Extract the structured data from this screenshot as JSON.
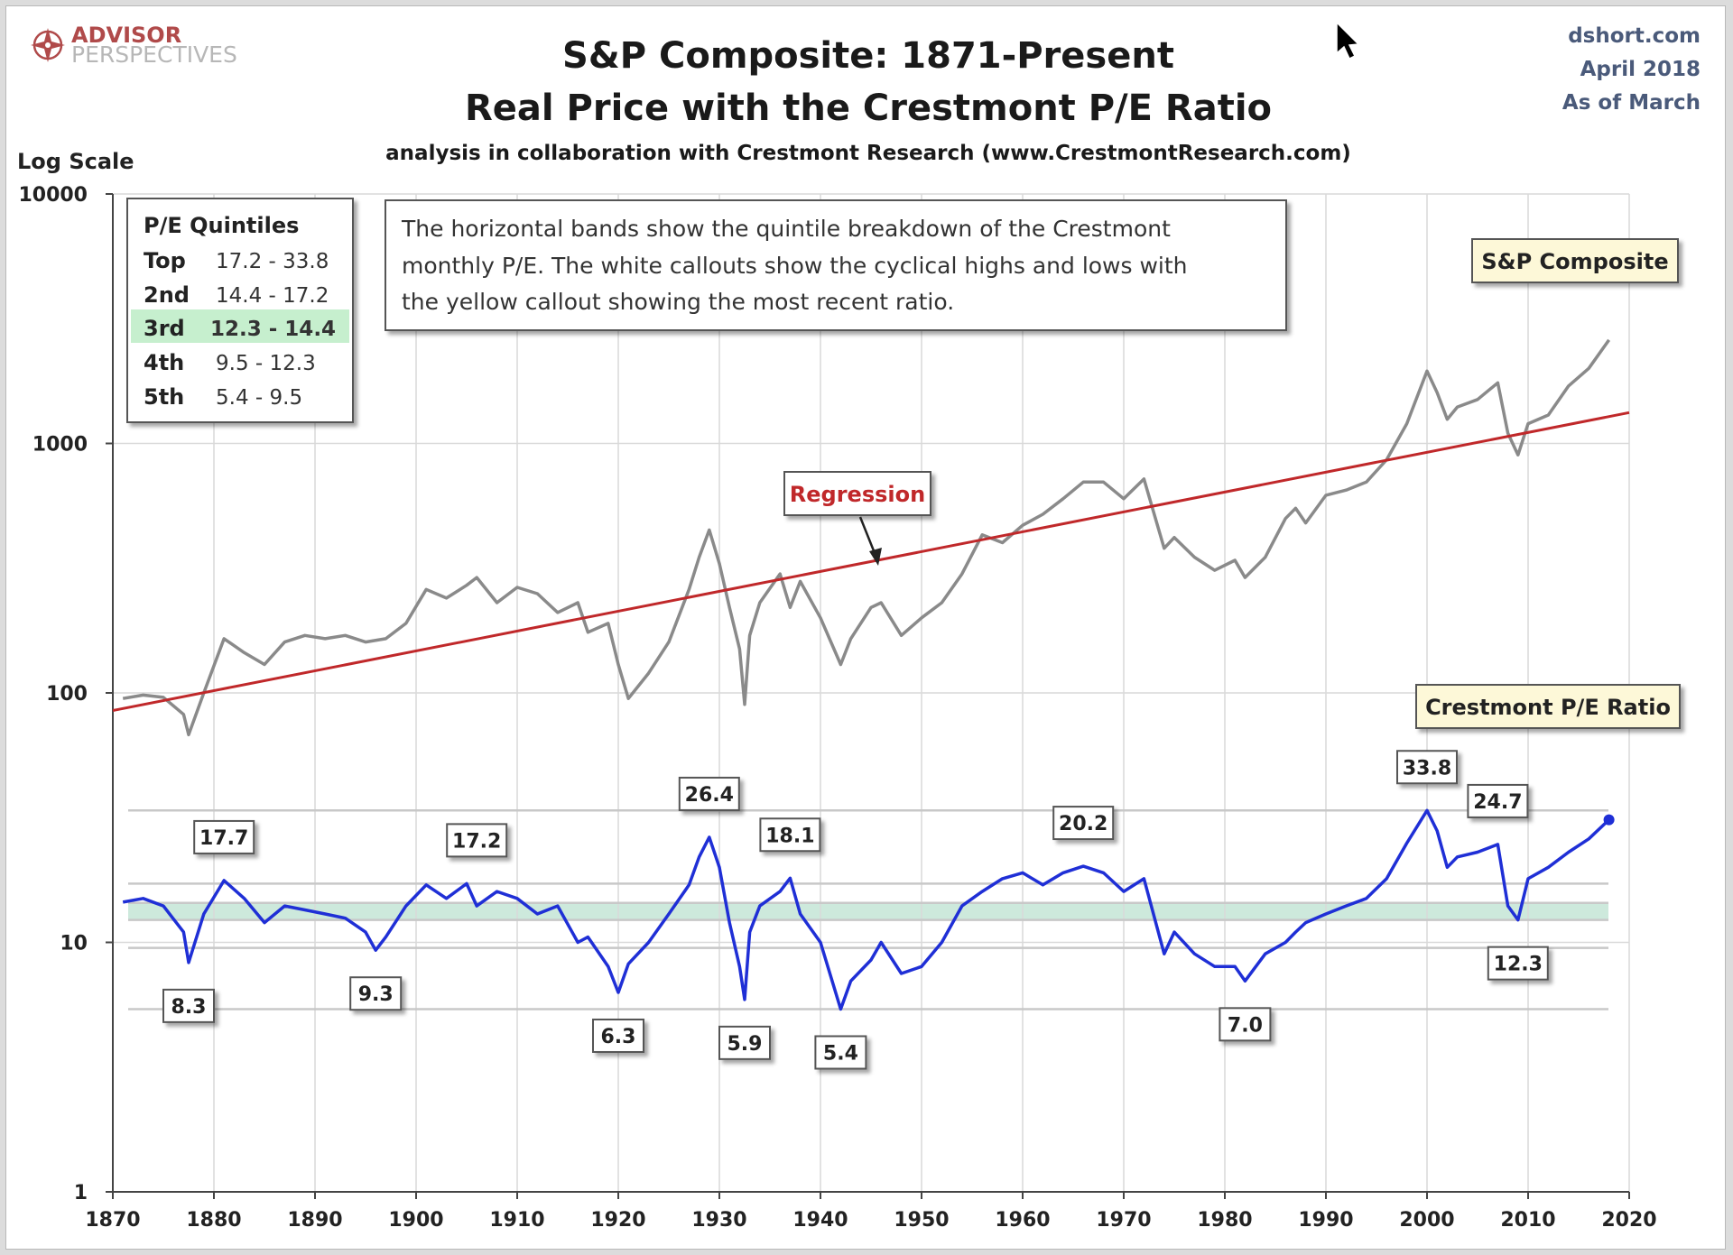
{
  "header": {
    "title_line1": "S&P Composite: 1871-Present",
    "title_line2": "Real Price with the Crestmont P/E Ratio",
    "subtitle": "analysis in collaboration with Crestmont Research (www.CrestmontResearch.com)",
    "source_site": "dshort.com",
    "source_date": "April 2018",
    "source_asof": "As of March",
    "logo_top": "ADVISOR",
    "logo_bottom": "PERSPECTIVES",
    "logo_icon": "compass-rose-icon"
  },
  "explanation": {
    "lines": [
      "The horizontal bands show the quintile breakdown  of the Crestmont",
      "monthly  P/E.  The white callouts show the cyclical highs and lows with",
      "the yellow callout showing the most recent ratio."
    ]
  },
  "quintiles": {
    "title": "P/E Quintiles",
    "rows": [
      {
        "label": "Top",
        "range": "17.2 - 33.8",
        "highlight": false
      },
      {
        "label": "2nd",
        "range": "14.4 - 17.2",
        "highlight": false
      },
      {
        "label": "3rd",
        "range": "12.3 - 14.4",
        "highlight": true
      },
      {
        "label": "4th",
        "range": "9.5 - 12.3",
        "highlight": false
      },
      {
        "label": "5th",
        "range": "5.4 - 9.5",
        "highlight": false
      }
    ]
  },
  "labels": {
    "sp_composite": "S&P Composite",
    "pe_ratio": "Crestmont P/E Ratio",
    "regression": "Regression"
  },
  "colors": {
    "price_line": "#8a8a8a",
    "pe_line": "#1f2fd6",
    "regression_line": "#c0282a",
    "band_fill": "#cde9dc",
    "callout_yellow": "#fdf8d8",
    "highlight_row": "#c6efce",
    "grid": "#d9d9d9",
    "quintile_lines": "#c8c8c8"
  },
  "chart_data": {
    "type": "line",
    "title": "S&P Composite: 1871-Present",
    "ylabel": "Log Scale",
    "xlim": [
      1870,
      2020
    ],
    "ylim": [
      1,
      10000
    ],
    "y_scale": "log",
    "grid": true,
    "x_ticks": [
      "1870",
      "1880",
      "1890",
      "1900",
      "1910",
      "1920",
      "1930",
      "1940",
      "1950",
      "1960",
      "1970",
      "1980",
      "1990",
      "2000",
      "2010",
      "2020"
    ],
    "y_ticks": [
      "1",
      "10",
      "100",
      "1000",
      "10000"
    ],
    "series": [
      {
        "name": "S&P Composite",
        "x": [
          1871,
          1873,
          1875,
          1877,
          1877.5,
          1879,
          1881,
          1883,
          1885,
          1887,
          1889,
          1891,
          1893,
          1895,
          1897,
          1899,
          1901,
          1903,
          1905,
          1906,
          1908,
          1910,
          1912,
          1914,
          1916,
          1917,
          1919,
          1920,
          1921,
          1923,
          1925,
          1927,
          1928,
          1929,
          1930,
          1931,
          1932,
          1932.5,
          1933,
          1934,
          1936,
          1937,
          1938,
          1940,
          1942,
          1943,
          1945,
          1946,
          1948,
          1950,
          1952,
          1954,
          1956,
          1958,
          1960,
          1962,
          1964,
          1966,
          1968,
          1970,
          1972,
          1974,
          1975,
          1977,
          1979,
          1981,
          1982,
          1984,
          1986,
          1987,
          1988,
          1990,
          1992,
          1994,
          1996,
          1998,
          2000,
          2001,
          2002,
          2003,
          2005,
          2007,
          2008,
          2009,
          2010,
          2012,
          2014,
          2016,
          2018
        ],
        "y": [
          95,
          98,
          96,
          82,
          68,
          100,
          165,
          145,
          130,
          160,
          170,
          165,
          170,
          160,
          165,
          190,
          260,
          240,
          270,
          290,
          230,
          265,
          250,
          210,
          230,
          175,
          190,
          130,
          95,
          120,
          160,
          260,
          350,
          450,
          330,
          220,
          150,
          90,
          170,
          230,
          300,
          220,
          280,
          200,
          130,
          165,
          220,
          230,
          170,
          200,
          230,
          300,
          430,
          400,
          470,
          520,
          600,
          700,
          700,
          600,
          720,
          380,
          420,
          350,
          310,
          340,
          290,
          350,
          500,
          550,
          480,
          620,
          650,
          700,
          860,
          1200,
          1950,
          1600,
          1250,
          1400,
          1500,
          1750,
          1100,
          900,
          1200,
          1300,
          1700,
          2000,
          2600
        ]
      },
      {
        "name": "Crestmont P/E Ratio",
        "x": [
          1871,
          1873,
          1875,
          1877,
          1877.5,
          1879,
          1881,
          1883,
          1885,
          1887,
          1889,
          1891,
          1893,
          1895,
          1896,
          1897,
          1899,
          1901,
          1903,
          1905,
          1906,
          1908,
          1910,
          1912,
          1914,
          1916,
          1917,
          1919,
          1920,
          1921,
          1923,
          1925,
          1927,
          1928,
          1929,
          1930,
          1931,
          1932,
          1932.5,
          1933,
          1934,
          1936,
          1937,
          1938,
          1940,
          1942,
          1943,
          1945,
          1946,
          1948,
          1950,
          1952,
          1954,
          1956,
          1958,
          1960,
          1962,
          1964,
          1966,
          1968,
          1970,
          1972,
          1974,
          1975,
          1977,
          1979,
          1981,
          1982,
          1984,
          1986,
          1987,
          1988,
          1990,
          1992,
          1994,
          1996,
          1998,
          2000,
          2001,
          2002,
          2003,
          2005,
          2007,
          2008,
          2009,
          2010,
          2012,
          2014,
          2016,
          2018
        ],
        "y": [
          14.5,
          15,
          14,
          11,
          8.3,
          13,
          17.7,
          15,
          12,
          14,
          13.5,
          13,
          12.5,
          11,
          9.3,
          10.5,
          14,
          17,
          15,
          17.2,
          14,
          16,
          15,
          13,
          14,
          10,
          10.5,
          8,
          6.3,
          8.2,
          10,
          13,
          17,
          22,
          26.4,
          20,
          12,
          8,
          5.9,
          11,
          14,
          16,
          18.1,
          13,
          10,
          5.4,
          7,
          8.5,
          10,
          7.5,
          8,
          10,
          14,
          16,
          18,
          19,
          17,
          19,
          20.2,
          19,
          16,
          18,
          9,
          11,
          9,
          8,
          8,
          7,
          9,
          10,
          11,
          12,
          13,
          14,
          15,
          18,
          25,
          33.8,
          28,
          20,
          22,
          23,
          24.7,
          14,
          12.3,
          18,
          20,
          23,
          26,
          31
        ]
      },
      {
        "name": "Regression",
        "x": [
          1870,
          2020
        ],
        "y": [
          85,
          1330
        ]
      }
    ],
    "quintile_lines": [
      33.8,
      17.2,
      14.4,
      12.3,
      9.5,
      5.4
    ],
    "callouts": [
      {
        "value": "8.3",
        "x": 1877.5,
        "y": 8.3,
        "pos": "below"
      },
      {
        "value": "17.7",
        "x": 1881,
        "y": 17.7,
        "pos": "above"
      },
      {
        "value": "9.3",
        "x": 1896,
        "y": 9.3,
        "pos": "below"
      },
      {
        "value": "17.2",
        "x": 1906,
        "y": 17.2,
        "pos": "above"
      },
      {
        "value": "6.3",
        "x": 1920,
        "y": 6.3,
        "pos": "below"
      },
      {
        "value": "26.4",
        "x": 1929,
        "y": 26.4,
        "pos": "above"
      },
      {
        "value": "5.9",
        "x": 1932.5,
        "y": 5.9,
        "pos": "below"
      },
      {
        "value": "18.1",
        "x": 1937,
        "y": 18.1,
        "pos": "above"
      },
      {
        "value": "5.4",
        "x": 1942,
        "y": 5.4,
        "pos": "below"
      },
      {
        "value": "20.2",
        "x": 1966,
        "y": 20.2,
        "pos": "above"
      },
      {
        "value": "7.0",
        "x": 1982,
        "y": 7.0,
        "pos": "below"
      },
      {
        "value": "33.8",
        "x": 2000,
        "y": 33.8,
        "pos": "above"
      },
      {
        "value": "24.7",
        "x": 2007,
        "y": 24.7,
        "pos": "above"
      },
      {
        "value": "12.3",
        "x": 2009,
        "y": 12.3,
        "pos": "below"
      }
    ]
  }
}
